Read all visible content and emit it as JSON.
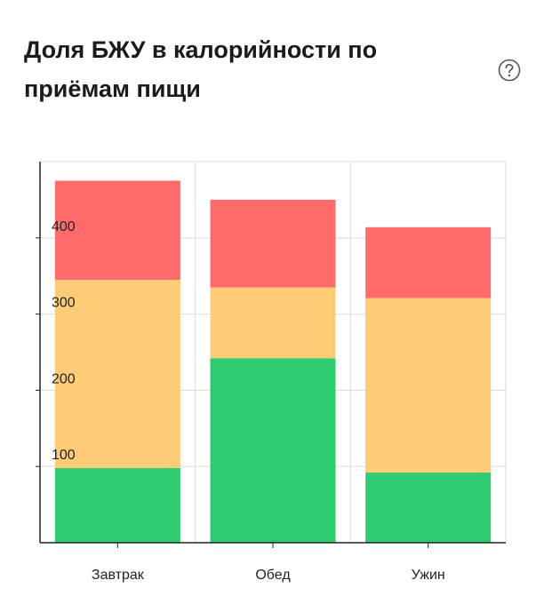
{
  "header": {
    "title": "Доля БЖУ в калорийности по приёмам пищи",
    "help_icon": "question-circle-icon"
  },
  "chart_data": {
    "type": "bar",
    "stacked": true,
    "categories": [
      "Завтрак",
      "Обед",
      "Ужин"
    ],
    "series": [
      {
        "values": [
          98,
          242,
          92
        ],
        "color": "#2ecc71"
      },
      {
        "values": [
          247,
          93,
          229
        ],
        "color": "#fecb76"
      },
      {
        "values": [
          130,
          115,
          93
        ],
        "color": "#ff6b6b"
      }
    ],
    "y_ticks": [
      100,
      200,
      300,
      400
    ],
    "ylim": [
      0,
      500
    ],
    "grid": true,
    "legend": "none",
    "title": "",
    "xlabel": "",
    "ylabel": ""
  }
}
